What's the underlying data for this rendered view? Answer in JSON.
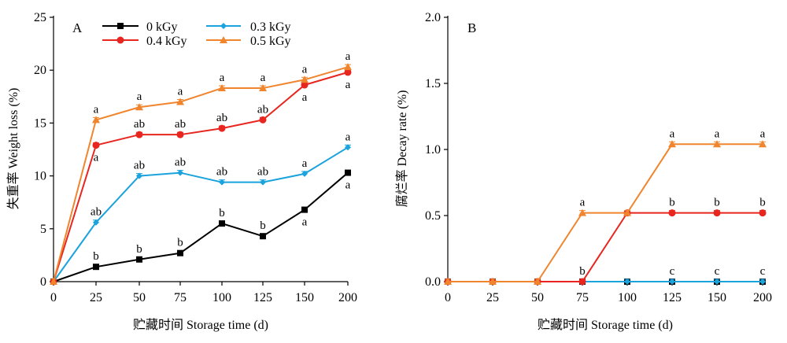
{
  "figure": {
    "background": "#ffffff"
  },
  "chart_data": [
    {
      "type": "line",
      "panel": "A",
      "x_categories": [
        "0",
        "25",
        "50",
        "75",
        "100",
        "125",
        "150",
        "200"
      ],
      "xlabel": "贮藏时间 Storage time (d)",
      "ylabel": "失重率 Weight loss (%)",
      "ylim": [
        0,
        25
      ],
      "yticks": [
        "0",
        "5",
        "10",
        "15",
        "20",
        "25"
      ],
      "grid": false,
      "legend_position": "top-center",
      "series": [
        {
          "name": "0 kGy",
          "color": "#000000",
          "marker": "square",
          "values": [
            0,
            1.4,
            2.1,
            2.7,
            5.5,
            4.3,
            6.8,
            10.3
          ],
          "labels": [
            "",
            "b",
            "b",
            "b",
            "b",
            "b",
            "a",
            "a"
          ],
          "label_pos": [
            "",
            "above",
            "above",
            "above",
            "above",
            "above",
            "below",
            "below"
          ]
        },
        {
          "name": "0.3 kGy",
          "color": "#1ba3dd",
          "marker": "diamond",
          "values": [
            0,
            5.6,
            10.0,
            10.3,
            9.4,
            9.4,
            10.2,
            12.7
          ],
          "labels": [
            "",
            "ab",
            "ab",
            "ab",
            "ab",
            "ab",
            "a",
            "a"
          ],
          "label_pos": [
            "",
            "above",
            "above",
            "above",
            "above",
            "above",
            "above",
            "above"
          ]
        },
        {
          "name": "0.4 kGy",
          "color": "#e8261f",
          "marker": "circle",
          "values": [
            0,
            12.9,
            13.9,
            13.9,
            14.5,
            15.3,
            18.6,
            19.8
          ],
          "labels": [
            "",
            "a",
            "ab",
            "ab",
            "ab",
            "ab",
            "a",
            "a"
          ],
          "label_pos": [
            "",
            "below",
            "above",
            "above",
            "above",
            "above",
            "below",
            "below"
          ]
        },
        {
          "name": "0.5 kGy",
          "color": "#f0852d",
          "marker": "triangle",
          "values": [
            0,
            15.3,
            16.5,
            17.0,
            18.3,
            18.3,
            19.1,
            20.3
          ],
          "labels": [
            "",
            "a",
            "a",
            "a",
            "a",
            "a",
            "a",
            "a"
          ],
          "label_pos": [
            "",
            "above",
            "above",
            "above",
            "above",
            "above",
            "above",
            "above"
          ]
        }
      ]
    },
    {
      "type": "line",
      "panel": "B",
      "x_categories": [
        "0",
        "25",
        "50",
        "75",
        "100",
        "125",
        "150",
        "200"
      ],
      "xlabel": "贮藏时间 Storage time (d)",
      "ylabel": "腐烂率 Decay rate (%)",
      "ylim": [
        0,
        2.0
      ],
      "yticks": [
        "0.0",
        "0.5",
        "1.0",
        "1.5",
        "2.0"
      ],
      "grid": false,
      "series": [
        {
          "name": "0 kGy",
          "color": "#000000",
          "marker": "square",
          "values": [
            0,
            0,
            0,
            0,
            0,
            0,
            0,
            0
          ],
          "labels": [
            "",
            "",
            "",
            "b",
            "",
            "",
            "",
            ""
          ],
          "label_pos": [
            "",
            "",
            "",
            "above",
            "",
            "",
            "",
            ""
          ]
        },
        {
          "name": "0.3 kGy",
          "color": "#1ba3dd",
          "marker": "diamond",
          "values": [
            0,
            0,
            0,
            0,
            0,
            0,
            0,
            0
          ],
          "labels": [
            "",
            "",
            "",
            "",
            "",
            "c",
            "c",
            "c"
          ],
          "label_pos": [
            "",
            "",
            "",
            "",
            "",
            "above",
            "above",
            "above"
          ]
        },
        {
          "name": "0.4 kGy",
          "color": "#e8261f",
          "marker": "circle",
          "values": [
            0,
            0,
            0,
            0,
            0.52,
            0.52,
            0.52,
            0.52
          ],
          "labels": [
            "",
            "",
            "",
            "",
            "",
            "b",
            "b",
            "b"
          ],
          "label_pos": [
            "",
            "",
            "",
            "",
            "",
            "above",
            "above",
            "above"
          ]
        },
        {
          "name": "0.5 kGy",
          "color": "#f0852d",
          "marker": "triangle",
          "values": [
            0,
            0,
            0,
            0.52,
            0.52,
            1.04,
            1.04,
            1.04
          ],
          "labels": [
            "",
            "",
            "",
            "a",
            "",
            "a",
            "a",
            "a"
          ],
          "label_pos": [
            "",
            "",
            "",
            "above",
            "",
            "above",
            "above",
            "above"
          ]
        }
      ]
    }
  ]
}
